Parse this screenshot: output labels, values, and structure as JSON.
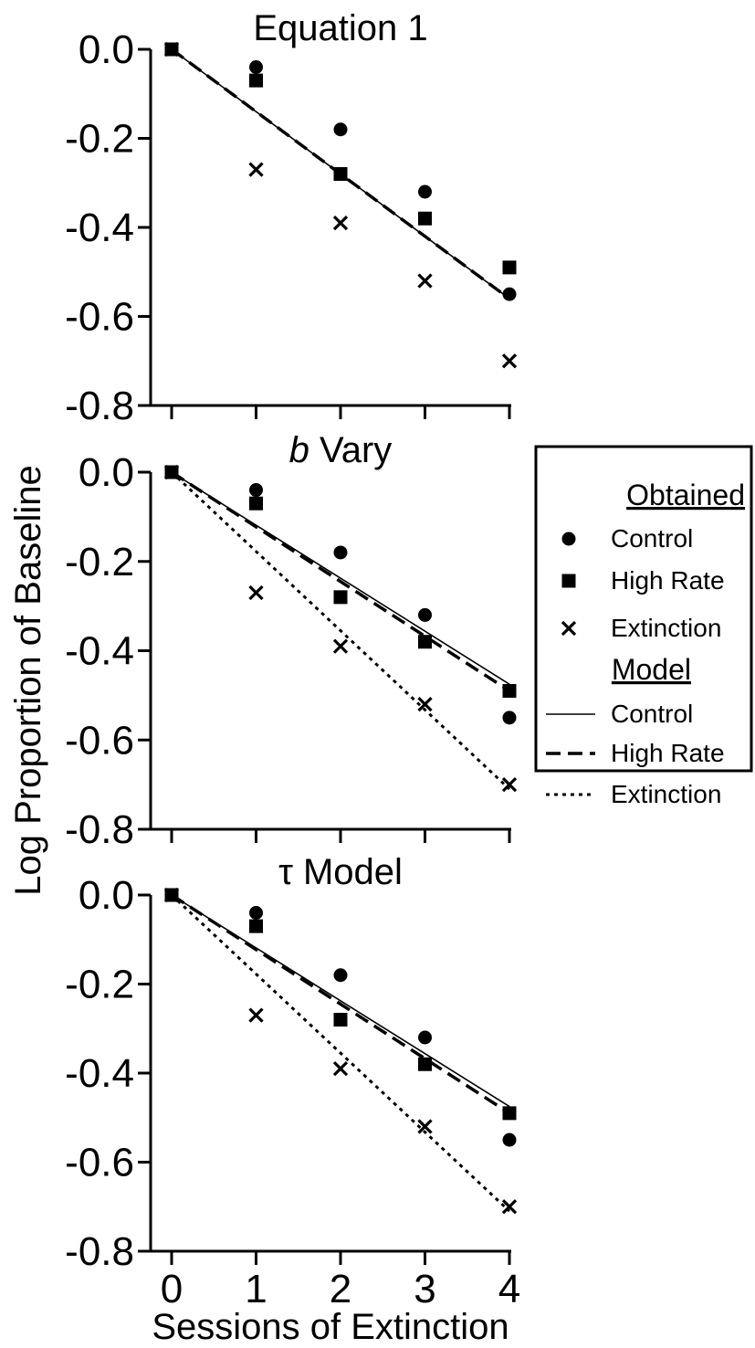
{
  "figure": {
    "ylabel": "Log Proportion of Baseline",
    "xlabel": "Sessions of Extinction"
  },
  "legend": {
    "obtained_heading": "Obtained",
    "model_heading": "Model",
    "obtained_items": [
      "Control",
      "High Rate",
      "Extinction"
    ],
    "model_items": [
      "Control",
      "High Rate",
      "Extinction"
    ]
  },
  "chart_data": [
    {
      "type": "scatter",
      "title": "Equation 1",
      "title_italic_prefix": "",
      "x": [
        0,
        1,
        2,
        3,
        4
      ],
      "xlim": [
        0,
        4
      ],
      "ylim": [
        -0.8,
        0.0
      ],
      "yticks": [
        "0.0",
        "-0.2",
        "-0.4",
        "-0.6",
        "-0.8"
      ],
      "xticks": [],
      "xlabel": "",
      "ylabel": "Log Proportion of Baseline",
      "obtained": [
        {
          "name": "Control",
          "marker": "circle",
          "values": [
            0.0,
            -0.04,
            -0.18,
            -0.32,
            -0.55
          ]
        },
        {
          "name": "High Rate",
          "marker": "square",
          "values": [
            0.0,
            -0.07,
            -0.28,
            -0.38,
            -0.49
          ]
        },
        {
          "name": "Extinction",
          "marker": "x",
          "values": [
            0.0,
            -0.27,
            -0.39,
            -0.52,
            -0.7
          ]
        }
      ],
      "model": [
        {
          "name": "Control",
          "style": "solid",
          "values": [
            0.0,
            -0.56
          ]
        },
        {
          "name": "High Rate",
          "style": "dashed",
          "values": [
            0.0,
            -0.56
          ]
        }
      ]
    },
    {
      "type": "scatter",
      "title": "Vary",
      "title_italic_prefix": "b",
      "x": [
        0,
        1,
        2,
        3,
        4
      ],
      "xlim": [
        0,
        4
      ],
      "ylim": [
        -0.8,
        0.0
      ],
      "yticks": [
        "0.0",
        "-0.2",
        "-0.4",
        "-0.6",
        "-0.8"
      ],
      "xticks": [],
      "xlabel": "",
      "ylabel": "Log Proportion of Baseline",
      "obtained": [
        {
          "name": "Control",
          "marker": "circle",
          "values": [
            0.0,
            -0.04,
            -0.18,
            -0.32,
            -0.55
          ]
        },
        {
          "name": "High Rate",
          "marker": "square",
          "values": [
            0.0,
            -0.07,
            -0.28,
            -0.38,
            -0.49
          ]
        },
        {
          "name": "Extinction",
          "marker": "x",
          "values": [
            0.0,
            -0.27,
            -0.39,
            -0.52,
            -0.7
          ]
        }
      ],
      "model": [
        {
          "name": "Control",
          "style": "solid",
          "values": [
            0.0,
            -0.475
          ]
        },
        {
          "name": "High Rate",
          "style": "dashed",
          "values": [
            0.0,
            -0.49
          ]
        },
        {
          "name": "Extinction",
          "style": "dotted",
          "values": [
            0.0,
            -0.71
          ]
        }
      ]
    },
    {
      "type": "scatter",
      "title": "τ Model",
      "title_italic_prefix": "",
      "x": [
        0,
        1,
        2,
        3,
        4
      ],
      "xlim": [
        0,
        4
      ],
      "ylim": [
        -0.8,
        0.0
      ],
      "yticks": [
        "0.0",
        "-0.2",
        "-0.4",
        "-0.6",
        "-0.8"
      ],
      "xticks": [
        "0",
        "1",
        "2",
        "3",
        "4"
      ],
      "xlabel": "Sessions of Extinction",
      "ylabel": "Log Proportion of Baseline",
      "obtained": [
        {
          "name": "Control",
          "marker": "circle",
          "values": [
            0.0,
            -0.04,
            -0.18,
            -0.32,
            -0.55
          ]
        },
        {
          "name": "High Rate",
          "marker": "square",
          "values": [
            0.0,
            -0.07,
            -0.28,
            -0.38,
            -0.49
          ]
        },
        {
          "name": "Extinction",
          "marker": "x",
          "values": [
            0.0,
            -0.27,
            -0.39,
            -0.52,
            -0.7
          ]
        }
      ],
      "model": [
        {
          "name": "Control",
          "style": "solid",
          "values": [
            0.0,
            -0.475
          ]
        },
        {
          "name": "High Rate",
          "style": "dashed",
          "values": [
            0.0,
            -0.49
          ]
        },
        {
          "name": "Extinction",
          "style": "dotted",
          "values": [
            0.0,
            -0.71
          ]
        }
      ]
    }
  ]
}
